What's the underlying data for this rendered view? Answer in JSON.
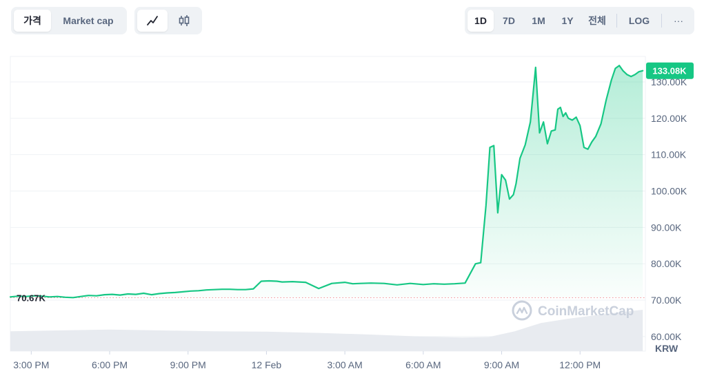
{
  "toolbar": {
    "metric_tabs": [
      {
        "label": "가격",
        "active": true
      },
      {
        "label": "Market cap",
        "active": false
      }
    ],
    "chart_type_icons": [
      {
        "icon": "line-chart-icon",
        "active": true
      },
      {
        "icon": "candlestick-icon",
        "active": false
      }
    ],
    "ranges": [
      {
        "label": "1D",
        "active": true
      },
      {
        "label": "7D",
        "active": false
      },
      {
        "label": "1M",
        "active": false
      },
      {
        "label": "1Y",
        "active": false
      },
      {
        "label": "전체",
        "active": false
      }
    ],
    "log_label": "LOG",
    "more_label": "···"
  },
  "watermark": "CoinMarketCap",
  "colors": {
    "line": "#16c784",
    "fill_top": "#16c784",
    "baseline": "#a6b0c3",
    "baseline_dot": "#ea3943",
    "label_bg": "#16c784",
    "volume": "#e8ebf0",
    "grid": "#eff2f5",
    "axis_text": "#58667e"
  },
  "chart_data": {
    "type": "area",
    "currency": "KRW",
    "ylim": [
      56000,
      137000
    ],
    "y_ticks": [
      60000,
      70000,
      80000,
      90000,
      100000,
      110000,
      120000,
      130000
    ],
    "y_tick_labels": [
      "60.00K",
      "70.00K",
      "80.00K",
      "90.00K",
      "100.00K",
      "110.00K",
      "120.00K",
      "130.00K"
    ],
    "x_tick_labels": [
      "3:00 PM",
      "6:00 PM",
      "9:00 PM",
      "12 Feb",
      "3:00 AM",
      "6:00 AM",
      "9:00 AM",
      "12:00 PM"
    ],
    "x_ticks_hours": [
      15,
      18,
      21,
      24,
      27,
      30,
      33,
      36
    ],
    "xlim_hours": [
      14.2,
      38.5
    ],
    "open_price": 70670,
    "open_label": "70.67K",
    "current_price": 133080,
    "current_label": "133.08K",
    "grid": true,
    "series": [
      {
        "x": [
          14.2,
          14.5,
          14.8,
          15.1,
          15.4,
          15.7,
          16.0,
          16.3,
          16.6,
          16.9,
          17.2,
          17.5,
          17.8,
          18.1,
          18.4,
          18.7,
          19.0,
          19.3,
          19.6,
          19.9,
          20.2,
          20.5,
          20.8,
          21.1,
          21.4,
          21.7,
          22.0,
          22.3,
          22.6,
          22.9,
          23.2,
          23.5,
          23.8,
          24.1,
          24.4,
          24.6,
          25.0,
          25.5,
          26.0,
          26.5,
          27.0,
          27.3,
          27.6,
          28.0,
          28.5,
          29.0,
          29.5,
          30.0,
          30.4,
          30.8,
          31.2,
          31.6,
          32.0,
          32.2,
          32.4,
          32.55,
          32.7,
          32.85,
          33.0,
          33.15,
          33.3,
          33.45,
          33.55,
          33.7,
          33.9,
          34.1,
          34.3,
          34.45,
          34.6,
          34.75,
          34.9,
          35.05,
          35.15,
          35.25,
          35.35,
          35.45,
          35.55,
          35.7,
          35.85,
          36.0,
          36.15,
          36.3,
          36.45,
          36.6,
          36.8,
          37.0,
          37.2,
          37.35,
          37.5,
          37.65,
          37.8,
          37.95,
          38.1,
          38.25,
          38.4
        ],
        "y": [
          70900,
          71100,
          71000,
          71200,
          71100,
          70900,
          71000,
          70800,
          70700,
          71000,
          71300,
          71200,
          71500,
          71600,
          71400,
          71700,
          71600,
          71900,
          71500,
          71800,
          72000,
          72100,
          72300,
          72500,
          72600,
          72800,
          72900,
          73000,
          73000,
          72900,
          72900,
          73100,
          75200,
          75300,
          75200,
          75000,
          75100,
          74900,
          73200,
          74600,
          74900,
          74500,
          74600,
          74700,
          74600,
          74200,
          74600,
          74300,
          74500,
          74400,
          74500,
          74700,
          80000,
          80300,
          96000,
          112000,
          112500,
          94000,
          104500,
          103000,
          97800,
          99000,
          102000,
          109000,
          112700,
          119000,
          134000,
          116000,
          119000,
          113000,
          116500,
          116800,
          122500,
          123000,
          120500,
          121500,
          120000,
          119500,
          120300,
          118000,
          112000,
          111500,
          113500,
          115000,
          118500,
          125000,
          130500,
          133700,
          134500,
          133000,
          132000,
          131500,
          132000,
          132800,
          133080
        ]
      },
      {
        "name": "Volume",
        "x": [
          14.2,
          16.0,
          18.0,
          20.0,
          22.0,
          24.0,
          26.0,
          28.0,
          30.0,
          31.5,
          32.5,
          33.5,
          34.5,
          35.5,
          36.5,
          37.5,
          38.4
        ],
        "y": [
          0.48,
          0.5,
          0.52,
          0.5,
          0.48,
          0.47,
          0.44,
          0.4,
          0.35,
          0.33,
          0.34,
          0.48,
          0.68,
          0.78,
          0.86,
          0.94,
          1.0
        ]
      }
    ]
  }
}
